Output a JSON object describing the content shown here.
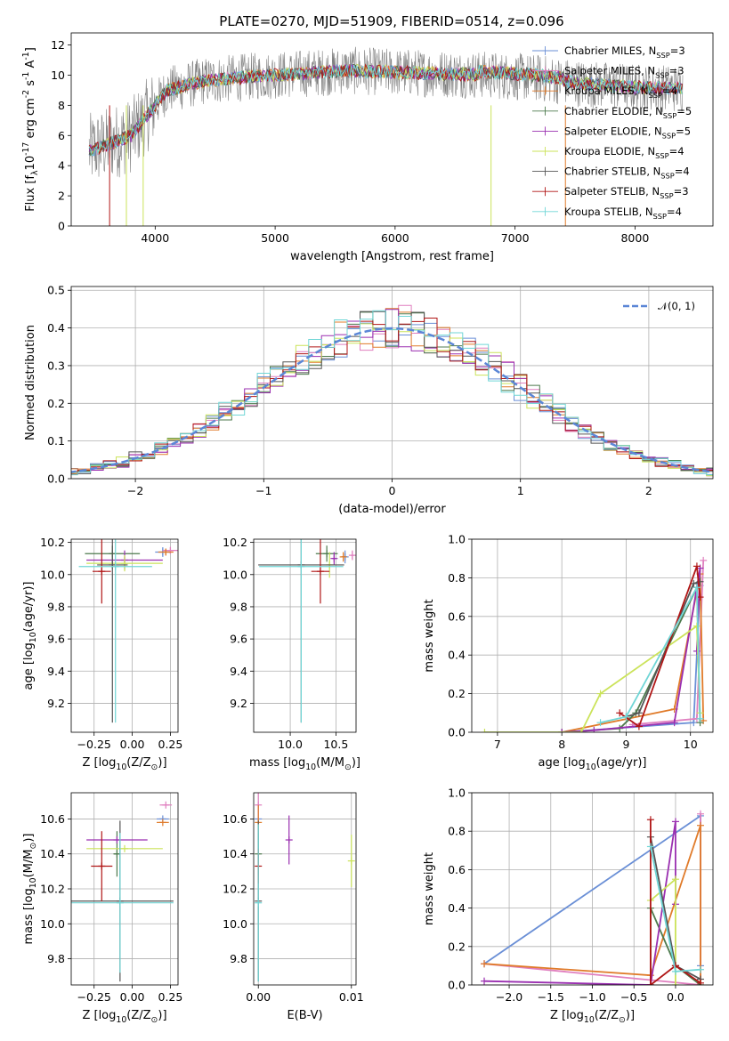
{
  "figure": {
    "title": "PLATE=0270, MJD=51909, FIBERID=0514, z=0.096"
  },
  "colors": {
    "Chabrier MILES": "#6a8fd6",
    "Salpeter MILES": "#e07fbf",
    "Kroupa MILES": "#e07b2a",
    "Chabrier ELODIE": "#4d7a4d",
    "Salpeter ELODIE": "#9a2fb0",
    "Kroupa ELODIE": "#cbe35a",
    "Chabrier STELIB": "#555555",
    "Salpeter STELIB": "#b01616",
    "Kroupa STELIB": "#70d6d6",
    "data": "#808080",
    "gaussian": "#5b86d6",
    "grid": "#b0b0b0"
  },
  "chart_data": [
    {
      "id": "spectrum",
      "type": "line",
      "xlabel": "wavelength [Angstrom, rest frame]",
      "ylabel": "Flux [f$_λ$10$^{-17}$ erg cm$^{-2}$ s$^{-1}$ A$^{-1}$]",
      "xlim": [
        3300,
        8650
      ],
      "ylim": [
        0,
        12.8
      ],
      "xticks": [
        4000,
        5000,
        6000,
        7000,
        8000
      ],
      "yticks": [
        0,
        2,
        4,
        6,
        8,
        10,
        12
      ],
      "grid": false,
      "legend_placement": "right",
      "legend": [
        "Chabrier MILES, N$_{SSP}$=3",
        "Salpeter MILES, N$_{SSP}$=3",
        "Kroupa MILES, N$_{SSP}$=4",
        "Chabrier ELODIE, N$_{SSP}$=5",
        "Salpeter ELODIE, N$_{SSP}$=5",
        "Kroupa ELODIE, N$_{SSP}$=4",
        "Chabrier STELIB, N$_{SSP}$=4",
        "Salpeter STELIB, N$_{SSP}$=3",
        "Kroupa STELIB, N$_{SSP}$=4"
      ],
      "continuum": {
        "x": [
          3450,
          3600,
          3800,
          3950,
          4100,
          4400,
          4800,
          5200,
          5600,
          6000,
          6400,
          6800,
          7200,
          7600,
          8000,
          8400
        ],
        "y": [
          5.0,
          5.4,
          6.0,
          7.5,
          9.0,
          9.6,
          9.9,
          10.1,
          10.3,
          10.2,
          10.1,
          10.0,
          9.8,
          9.4,
          9.2,
          9.1
        ]
      }
    },
    {
      "id": "residuals",
      "type": "line",
      "xlabel": "(data-model)/error",
      "ylabel": "Normed distribution",
      "xlim": [
        -2.5,
        2.5
      ],
      "ylim": [
        0,
        0.51
      ],
      "xticks": [
        -2,
        -1,
        0,
        1,
        2
      ],
      "yticks": [
        0.0,
        0.1,
        0.2,
        0.3,
        0.4,
        0.5
      ],
      "grid": true,
      "legend_placement": "top-right",
      "gaussian_label": "$\\mathcal{N}(0, 1)$",
      "bin_width": 0.1
    },
    {
      "id": "age_vs_Z",
      "type": "scatter",
      "xlabel": "Z [log$_{10}$($Z/Z_\\odot$)]",
      "ylabel": "age  [log$_{10}$($age/yr$)]",
      "xlim": [
        -0.4,
        0.3
      ],
      "ylim": [
        9.02,
        10.22
      ],
      "xticks": [
        -0.25,
        0.0,
        0.25
      ],
      "yticks": [
        9.2,
        9.4,
        9.6,
        9.8,
        10.0,
        10.2
      ],
      "grid": true,
      "points": [
        {
          "model": "Chabrier MILES",
          "x": 0.2,
          "y": 10.14,
          "xerr": 0.05,
          "yerr": 0.03
        },
        {
          "model": "Salpeter MILES",
          "x": 0.25,
          "y": 10.15,
          "xerr": 0.05,
          "yerr": 0.02
        },
        {
          "model": "Kroupa MILES",
          "x": 0.22,
          "y": 10.14,
          "xerr": 0.05,
          "yerr": 0.02
        },
        {
          "model": "Chabrier ELODIE",
          "x": -0.13,
          "y": 10.13,
          "xerr": 0.18,
          "yerr": 0.05
        },
        {
          "model": "Salpeter ELODIE",
          "x": -0.05,
          "y": 10.09,
          "xerr": 0.25,
          "yerr": 0.06
        },
        {
          "model": "Kroupa ELODIE",
          "x": -0.05,
          "y": 10.07,
          "xerr": 0.25,
          "yerr": 0.05
        },
        {
          "model": "Chabrier STELIB",
          "x": -0.13,
          "y": 10.06,
          "xerr": 0.1,
          "yerr": 0.98
        },
        {
          "model": "Salpeter STELIB",
          "x": -0.2,
          "y": 10.02,
          "xerr": 0.06,
          "yerr": 0.2
        },
        {
          "model": "Kroupa STELIB",
          "x": -0.11,
          "y": 10.05,
          "xerr": 0.24,
          "yerr": 0.97
        }
      ]
    },
    {
      "id": "age_vs_mass",
      "type": "scatter",
      "xlabel": "mass [log$_{10}$($M/M_\\odot$)]",
      "ylabel": "",
      "xlim": [
        9.6,
        10.72
      ],
      "ylim": [
        9.02,
        10.22
      ],
      "xticks": [
        10.0,
        10.5
      ],
      "yticks": [
        9.2,
        9.4,
        9.6,
        9.8,
        10.0,
        10.2
      ],
      "grid": true,
      "points": [
        {
          "model": "Chabrier MILES",
          "x": 10.6,
          "y": 10.11,
          "xerr": 0.02,
          "yerr": 0.04
        },
        {
          "model": "Salpeter MILES",
          "x": 10.68,
          "y": 10.12,
          "xerr": 0.02,
          "yerr": 0.03
        },
        {
          "model": "Kroupa MILES",
          "x": 10.58,
          "y": 10.11,
          "xerr": 0.02,
          "yerr": 0.03
        },
        {
          "model": "Chabrier ELODIE",
          "x": 10.4,
          "y": 10.13,
          "xerr": 0.12,
          "yerr": 0.05
        },
        {
          "model": "Salpeter ELODIE",
          "x": 10.48,
          "y": 10.1,
          "xerr": 0.02,
          "yerr": 0.04
        },
        {
          "model": "Kroupa ELODIE",
          "x": 10.43,
          "y": 10.06,
          "xerr": 0.02,
          "yerr": 0.08
        },
        {
          "model": "Chabrier STELIB",
          "x": 10.12,
          "y": 10.06,
          "xerr": 0.47,
          "yerr": 0.98
        },
        {
          "model": "Salpeter STELIB",
          "x": 10.33,
          "y": 10.02,
          "xerr": 0.1,
          "yerr": 0.2
        },
        {
          "model": "Kroupa STELIB",
          "x": 10.12,
          "y": 10.05,
          "xerr": 0.46,
          "yerr": 0.97
        }
      ]
    },
    {
      "id": "weight_vs_age",
      "type": "line",
      "xlabel": "age  [log$_{10}$($age/yr$)]",
      "ylabel": "mass weight",
      "xlim": [
        6.6,
        10.35
      ],
      "ylim": [
        0,
        1.0
      ],
      "xticks": [
        7,
        8,
        9,
        10
      ],
      "yticks": [
        0.0,
        0.2,
        0.4,
        0.6,
        0.8,
        1.0
      ],
      "grid": true,
      "series": [
        {
          "model": "Chabrier MILES",
          "x": [
            8.0,
            10.05,
            10.15
          ],
          "y": [
            0.0,
            0.05,
            0.76
          ]
        },
        {
          "model": "Salpeter MILES",
          "x": [
            9.1,
            10.1,
            10.2
          ],
          "y": [
            0.04,
            0.07,
            0.89
          ]
        },
        {
          "model": "Kroupa MILES",
          "x": [
            8.0,
            9.75,
            10.15,
            10.2
          ],
          "y": [
            0.0,
            0.12,
            0.82,
            0.06
          ]
        },
        {
          "model": "Chabrier ELODIE",
          "x": [
            8.0,
            8.9,
            9.15,
            10.1,
            10.15
          ],
          "y": [
            0.0,
            0.02,
            0.1,
            0.75,
            0.05
          ]
        },
        {
          "model": "Salpeter ELODIE",
          "x": [
            8.0,
            8.5,
            9.75,
            10.15,
            10.1
          ],
          "y": [
            0.0,
            0.01,
            0.05,
            0.85,
            0.42
          ]
        },
        {
          "model": "Kroupa ELODIE",
          "x": [
            6.8,
            8.3,
            8.6,
            10.1,
            10.15
          ],
          "y": [
            0.0,
            0.0,
            0.2,
            0.55,
            0.1
          ]
        },
        {
          "model": "Chabrier STELIB",
          "x": [
            9.0,
            9.2,
            10.05,
            10.15
          ],
          "y": [
            0.08,
            0.1,
            0.77,
            0.78
          ]
        },
        {
          "model": "Salpeter STELIB",
          "x": [
            8.9,
            9.2,
            10.1,
            10.15
          ],
          "y": [
            0.1,
            0.03,
            0.86,
            0.7
          ]
        },
        {
          "model": "Kroupa STELIB",
          "x": [
            8.6,
            9.0,
            10.1,
            10.15
          ],
          "y": [
            0.05,
            0.08,
            0.75,
            0.07
          ]
        }
      ]
    },
    {
      "id": "mass_vs_Z",
      "type": "scatter",
      "xlabel": "Z [log$_{10}$($Z/Z_\\odot$)]",
      "ylabel": "mass [log$_{10}$($M/M_\\odot$)]",
      "xlim": [
        -0.4,
        0.3
      ],
      "ylim": [
        9.65,
        10.75
      ],
      "xticks": [
        -0.25,
        0.0,
        0.25
      ],
      "yticks": [
        9.8,
        10.0,
        10.2,
        10.4,
        10.6
      ],
      "grid": true,
      "points": [
        {
          "model": "Chabrier MILES",
          "x": 0.2,
          "y": 10.6,
          "xerr": 0.04,
          "yerr": 0.0
        },
        {
          "model": "Salpeter MILES",
          "x": 0.22,
          "y": 10.68,
          "xerr": 0.04,
          "yerr": 0.0
        },
        {
          "model": "Kroupa MILES",
          "x": 0.2,
          "y": 10.58,
          "xerr": 0.04,
          "yerr": 0.0
        },
        {
          "model": "Chabrier ELODIE",
          "x": -0.1,
          "y": 10.4,
          "xerr": 0.02,
          "yerr": 0.13
        },
        {
          "model": "Salpeter ELODIE",
          "x": -0.1,
          "y": 10.48,
          "xerr": 0.2,
          "yerr": 0.0
        },
        {
          "model": "Kroupa ELODIE",
          "x": -0.05,
          "y": 10.43,
          "xerr": 0.25,
          "yerr": 0.0
        },
        {
          "model": "Chabrier STELIB",
          "x": -0.08,
          "y": 10.13,
          "xerr": 0.35,
          "yerr": 0.46
        },
        {
          "model": "Salpeter STELIB",
          "x": -0.2,
          "y": 10.33,
          "xerr": 0.07,
          "yerr": 0.2
        },
        {
          "model": "Kroupa STELIB",
          "x": -0.08,
          "y": 10.12,
          "xerr": 0.35,
          "yerr": 0.4
        }
      ]
    },
    {
      "id": "mass_vs_ebv",
      "type": "scatter",
      "xlabel": "E(B-V)",
      "ylabel": "",
      "xlim": [
        -0.0005,
        0.0105
      ],
      "ylim": [
        9.65,
        10.75
      ],
      "xticks": [
        0.0,
        0.01
      ],
      "yticks": [
        9.8,
        10.0,
        10.2,
        10.4,
        10.6
      ],
      "grid": true,
      "points": [
        {
          "model": "Chabrier MILES",
          "x": 0.0,
          "y": 10.6,
          "xerr": 0.0,
          "yerr": 0.08
        },
        {
          "model": "Salpeter MILES",
          "x": 0.0,
          "y": 10.68,
          "xerr": 0.0,
          "yerr": 0.08
        },
        {
          "model": "Kroupa MILES",
          "x": 0.0,
          "y": 10.58,
          "xerr": 0.0,
          "yerr": 0.1
        },
        {
          "model": "Chabrier ELODIE",
          "x": 0.0,
          "y": 10.4,
          "xerr": 0.0,
          "yerr": 0.12
        },
        {
          "model": "Salpeter ELODIE",
          "x": 0.0033,
          "y": 10.48,
          "xerr": 0.0,
          "yerr": 0.14
        },
        {
          "model": "Kroupa ELODIE",
          "x": 0.01,
          "y": 10.36,
          "xerr": 0.0,
          "yerr": 0.15
        },
        {
          "model": "Chabrier STELIB",
          "x": 0.0,
          "y": 10.13,
          "xerr": 0.0,
          "yerr": 0.46
        },
        {
          "model": "Salpeter STELIB",
          "x": 0.0,
          "y": 10.33,
          "xerr": 0.0,
          "yerr": 0.1
        },
        {
          "model": "Kroupa STELIB",
          "x": 0.0,
          "y": 10.12,
          "xerr": 0.0,
          "yerr": 0.45
        }
      ]
    },
    {
      "id": "weight_vs_Z",
      "type": "line",
      "xlabel": "Z [log$_{10}$($Z/Z_\\odot$)]",
      "ylabel": "mass weight",
      "xlim": [
        -2.45,
        0.45
      ],
      "ylim": [
        0,
        1.0
      ],
      "xticks": [
        -2.0,
        -1.5,
        -1.0,
        -0.5,
        0.0
      ],
      "yticks": [
        0.0,
        0.2,
        0.4,
        0.6,
        0.8,
        1.0
      ],
      "grid": true,
      "series": [
        {
          "model": "Chabrier MILES",
          "x": [
            -2.3,
            0.3,
            0.3
          ],
          "y": [
            0.11,
            0.88,
            0.1
          ]
        },
        {
          "model": "Salpeter MILES",
          "x": [
            -2.3,
            0.3,
            0.3
          ],
          "y": [
            0.11,
            0.0,
            0.89
          ]
        },
        {
          "model": "Kroupa MILES",
          "x": [
            -2.3,
            -0.3,
            0.3,
            0.3
          ],
          "y": [
            0.11,
            0.05,
            0.83,
            0.0
          ]
        },
        {
          "model": "Chabrier ELODIE",
          "x": [
            -0.3,
            -0.3,
            0.0,
            0.3
          ],
          "y": [
            0.0,
            0.4,
            0.1,
            0.0
          ]
        },
        {
          "model": "Salpeter ELODIE",
          "x": [
            -2.3,
            -0.3,
            0.0,
            0.0
          ],
          "y": [
            0.02,
            0.0,
            0.85,
            0.42
          ]
        },
        {
          "model": "Kroupa ELODIE",
          "x": [
            -0.3,
            0.0,
            0.0
          ],
          "y": [
            0.44,
            0.55,
            0.0
          ]
        },
        {
          "model": "Chabrier STELIB",
          "x": [
            -0.3,
            0.0,
            0.3
          ],
          "y": [
            0.77,
            0.1,
            0.03
          ]
        },
        {
          "model": "Salpeter STELIB",
          "x": [
            -0.3,
            -0.3,
            0.0,
            0.3
          ],
          "y": [
            0.86,
            0.0,
            0.1,
            0.01
          ]
        },
        {
          "model": "Kroupa STELIB",
          "x": [
            -0.3,
            0.0,
            0.3
          ],
          "y": [
            0.72,
            0.07,
            0.08
          ]
        }
      ]
    }
  ]
}
